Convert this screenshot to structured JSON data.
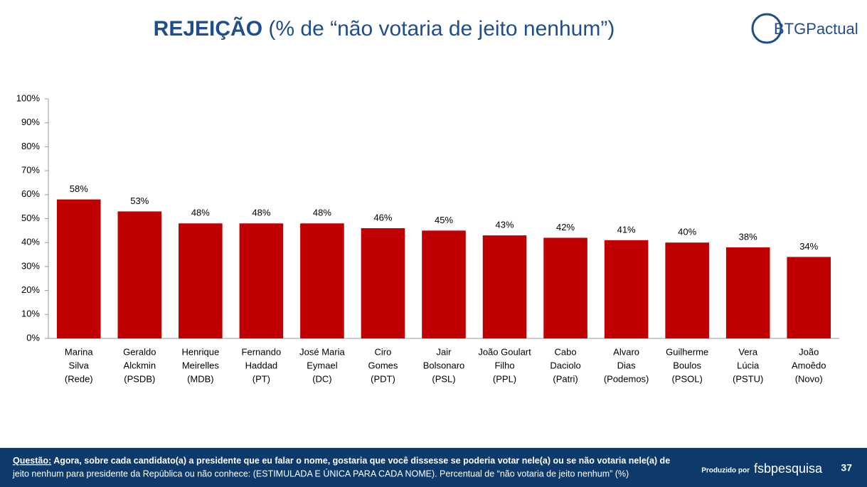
{
  "title": "REJEIÇÃO",
  "title_note": "(% de “não votaria de jeito nenhum”)",
  "logo": "BTGPactual",
  "chart_data": {
    "type": "bar",
    "color": "#c00000",
    "categories": [
      [
        "Marina",
        "Silva",
        "(Rede)"
      ],
      [
        "Geraldo",
        "Alckmin",
        "(PSDB)"
      ],
      [
        "Henrique",
        "Meirelles",
        "(MDB)"
      ],
      [
        "Fernando",
        "Haddad",
        "(PT)"
      ],
      [
        "José Maria",
        "Eymael",
        "(DC)"
      ],
      [
        "Ciro",
        "Gomes",
        "(PDT)"
      ],
      [
        "Jair",
        "Bolsonaro",
        "(PSL)"
      ],
      [
        "João Goulart",
        "Filho",
        "(PPL)"
      ],
      [
        "Cabo",
        "Daciolo",
        "(Patri)"
      ],
      [
        "Alvaro",
        "Dias",
        "(Podemos)"
      ],
      [
        "Guilherme",
        "Boulos",
        "(PSOL)"
      ],
      [
        "Vera",
        "Lúcia",
        "(PSTU)"
      ],
      [
        "João",
        "Amoêdo",
        "(Novo)"
      ]
    ],
    "values": [
      58,
      53,
      48,
      48,
      48,
      46,
      45,
      43,
      42,
      41,
      40,
      38,
      34
    ],
    "value_labels": [
      "58%",
      "53%",
      "48%",
      "48%",
      "48%",
      "46%",
      "45%",
      "43%",
      "42%",
      "41%",
      "40%",
      "38%",
      "34%"
    ],
    "ylim": [
      0,
      100
    ],
    "yticks": [
      {
        "value": 0,
        "label": "0%"
      },
      {
        "value": 10,
        "label": "10%"
      },
      {
        "value": 20,
        "label": "20%"
      },
      {
        "value": 30,
        "label": "30%"
      },
      {
        "value": 40,
        "label": "40%"
      },
      {
        "value": 50,
        "label": "50%"
      },
      {
        "value": 60,
        "label": "60%"
      },
      {
        "value": 70,
        "label": "70%"
      },
      {
        "value": 80,
        "label": "80%"
      },
      {
        "value": 90,
        "label": "90%"
      },
      {
        "value": 100,
        "label": "100%"
      }
    ],
    "grid": false
  },
  "footer": {
    "question_label": "Questão:",
    "question_lines": [
      "Agora, sobre cada candidato(a) a presidente que eu falar o nome, gostaria que você dissesse se poderia votar nele(a) ou se não votaria nele(a) de",
      "jeito nenhum para presidente da República ou não conhece:  (ESTIMULADA E ÚNICA PARA CADA NOME). Percentual de “não votaria de jeito nenhum” (%)"
    ],
    "produced_by": "Produzido por",
    "producer": "fsbpesquisa",
    "page": "37"
  }
}
